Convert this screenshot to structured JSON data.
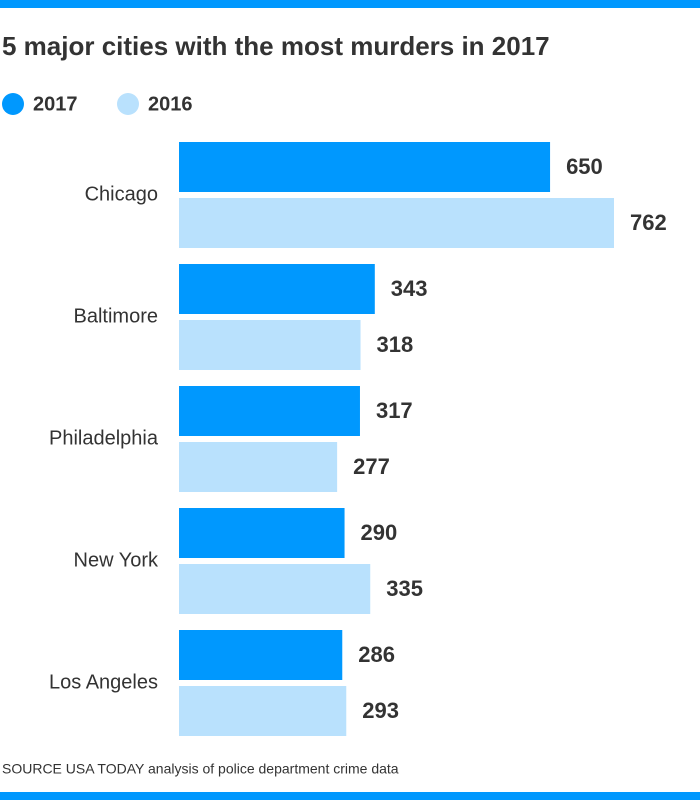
{
  "chart_data": {
    "type": "hbar",
    "title": "5 major cities with the most murders in 2017",
    "categories": [
      "Chicago",
      "Baltimore",
      "Philadelphia",
      "New York",
      "Los Angeles"
    ],
    "series": [
      {
        "name": "2017",
        "color": "#0098fe",
        "values": [
          650,
          343,
          317,
          290,
          286
        ]
      },
      {
        "name": "2016",
        "color": "#b9e1fd",
        "values": [
          762,
          318,
          277,
          335,
          293
        ]
      }
    ],
    "source": "SOURCE USA TODAY analysis of police department crime data"
  }
}
